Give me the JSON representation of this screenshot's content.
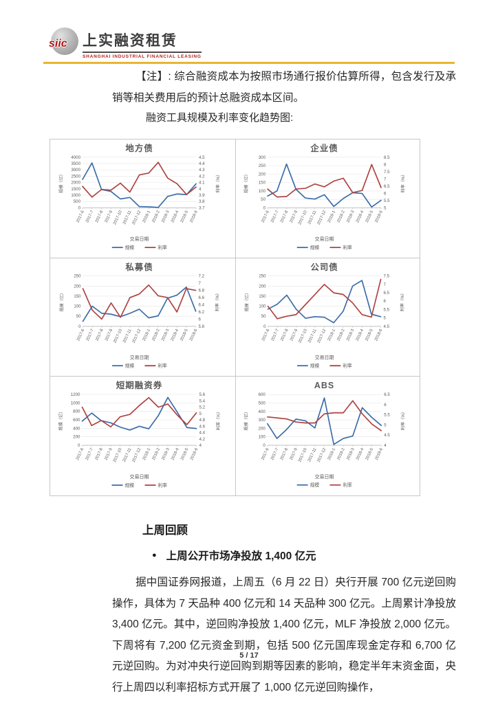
{
  "header": {
    "logo_mark": "siic",
    "company_name_cn": "上实融资租赁",
    "company_name_en": "SHANGHAI INDUSTRIAL FINANCIAL LEASING",
    "brand_gold": "#e9b52f",
    "brand_red": "#b01212"
  },
  "note": {
    "text": "【注】: 综合融资成本为按照市场通行报价估算所得，包含发行及承销等相关费用后的预计总融资成本区间。"
  },
  "charts_section": {
    "caption": "融资工具规模及利率变化趋势图:"
  },
  "chart_style": {
    "series_blue": "#3c6da8",
    "series_red": "#ae4342",
    "grid": "#e4e4e4",
    "baseline": "#c4c4c4",
    "text": "#595959"
  },
  "chart_data": [
    {
      "type": "line",
      "title": "地方债",
      "xlabel": "交易日期",
      "ylabel_left": "规模（亿）",
      "ylabel_right": "利率（%）",
      "x": [
        "2017-6",
        "2017-7",
        "2017-8",
        "2017-9",
        "2017-10",
        "2017-11",
        "2017-12",
        "2018-1",
        "2018-2",
        "2018-3",
        "2018-4",
        "2018-5",
        "2018-6"
      ],
      "left_ticks": [
        "0",
        "500",
        "1000",
        "1500",
        "2000",
        "2500",
        "3000",
        "3500",
        "4000"
      ],
      "right_ticks": [
        "3.7",
        "3.8",
        "3.9",
        "4",
        "4.1",
        "4.2",
        "4.3",
        "4.4",
        "4.5"
      ],
      "left_range": [
        0,
        4000
      ],
      "right_range": [
        3.7,
        4.5
      ],
      "legend": [
        "规模",
        "利率"
      ],
      "series": [
        {
          "name": "规模",
          "axis": "left",
          "values": [
            2250,
            3550,
            1450,
            1300,
            700,
            820,
            100,
            80,
            30,
            900,
            1100,
            1050,
            1900
          ]
        },
        {
          "name": "利率",
          "axis": "right",
          "values": [
            4.04,
            3.87,
            3.99,
            3.98,
            4.09,
            3.95,
            4.22,
            4.25,
            4.42,
            4.17,
            4.08,
            3.91,
            4.03
          ]
        }
      ]
    },
    {
      "type": "line",
      "title": "企业债",
      "xlabel": "交易日期",
      "ylabel_left": "规模（亿）",
      "ylabel_right": "利率（%）",
      "x": [
        "2017-6",
        "2017-7",
        "2017-8",
        "2017-9",
        "2017-10",
        "2017-11",
        "2017-12",
        "2018-1",
        "2018-2",
        "2018-3",
        "2018-4",
        "2018-5",
        "2018-6"
      ],
      "left_ticks": [
        "0",
        "50",
        "100",
        "150",
        "200",
        "250",
        "300"
      ],
      "right_ticks": [
        "5",
        "5.5",
        "6",
        "6.5",
        "7",
        "7.5",
        "8",
        "8.5"
      ],
      "left_range": [
        0,
        300
      ],
      "right_range": [
        5,
        8.5
      ],
      "legend": [
        "规模",
        "利率"
      ],
      "series": [
        {
          "name": "规模",
          "axis": "left",
          "values": [
            70,
            100,
            260,
            110,
            58,
            52,
            78,
            8,
            55,
            90,
            85,
            5,
            45
          ]
        },
        {
          "name": "利率",
          "axis": "right",
          "values": [
            6.3,
            5.75,
            5.78,
            6.3,
            6.35,
            6.65,
            6.45,
            6.85,
            7.05,
            6.05,
            6.2,
            8.0,
            6.4
          ]
        }
      ]
    },
    {
      "type": "line",
      "title": "私募债",
      "xlabel": "交易日期",
      "ylabel_left": "规模（亿）",
      "ylabel_right": "利率（%）",
      "x": [
        "2017-6",
        "2017-7",
        "2017-8",
        "2017-9",
        "2017-10",
        "2017-11",
        "2017-12",
        "2018-1",
        "2018-2",
        "2018-3",
        "2018-4",
        "2018-5",
        "2018-6"
      ],
      "left_ticks": [
        "0",
        "50",
        "100",
        "150",
        "200",
        "250"
      ],
      "right_ticks": [
        "5.8",
        "6",
        "6.2",
        "6.4",
        "6.6",
        "6.8",
        "7",
        "7.2"
      ],
      "left_range": [
        0,
        250
      ],
      "right_range": [
        5.8,
        7.2
      ],
      "legend": [
        "规模",
        "利率"
      ],
      "series": [
        {
          "name": "规模",
          "axis": "left",
          "values": [
            25,
            100,
            65,
            60,
            48,
            65,
            85,
            42,
            52,
            140,
            155,
            195,
            75
          ]
        },
        {
          "name": "利率",
          "axis": "right",
          "values": [
            6.85,
            6.25,
            6.0,
            6.45,
            6.05,
            6.6,
            6.7,
            6.95,
            6.65,
            6.6,
            6.2,
            6.85,
            6.8
          ]
        }
      ]
    },
    {
      "type": "line",
      "title": "公司债",
      "xlabel": "交易日期",
      "ylabel_left": "规模（亿）",
      "ylabel_right": "利率（%）",
      "x": [
        "2017-6",
        "2017-7",
        "2017-8",
        "2017-9",
        "2017-10",
        "2017-11",
        "2017-12",
        "2018-1",
        "2018-2",
        "2018-3",
        "2018-4",
        "2018-5",
        "2018-6"
      ],
      "left_ticks": [
        "0",
        "50",
        "100",
        "150",
        "200",
        "250"
      ],
      "right_ticks": [
        "4.5",
        "5",
        "5.5",
        "6",
        "6.5",
        "7",
        "7.5"
      ],
      "left_range": [
        0,
        250
      ],
      "right_range": [
        4.5,
        7.5
      ],
      "legend": [
        "规模",
        "利率"
      ],
      "series": [
        {
          "name": "规模",
          "axis": "left",
          "values": [
            85,
            110,
            155,
            85,
            40,
            48,
            45,
            18,
            75,
            200,
            228,
            60,
            48
          ]
        },
        {
          "name": "利率",
          "axis": "right",
          "values": [
            5.7,
            4.95,
            5.1,
            5.2,
            5.8,
            6.4,
            7.0,
            6.5,
            6.4,
            5.9,
            5.2,
            5.05,
            7.3
          ]
        }
      ]
    },
    {
      "type": "line",
      "title": "短期融资券",
      "xlabel": "交易日期",
      "ylabel_left": "规模（亿）",
      "ylabel_right": "利率（%）",
      "x": [
        "2017-6",
        "2017-7",
        "2017-8",
        "2017-9",
        "2017-10",
        "2017-11",
        "2017-12",
        "2018-1",
        "2018-2",
        "2018-3",
        "2018-4",
        "2018-5",
        "2018-6"
      ],
      "left_ticks": [
        "0",
        "200",
        "400",
        "600",
        "800",
        "1000",
        "1200"
      ],
      "right_ticks": [
        "4",
        "4.2",
        "4.4",
        "4.6",
        "4.8",
        "5",
        "5.2",
        "5.4",
        "5.6"
      ],
      "left_range": [
        0,
        1200
      ],
      "right_range": [
        4,
        5.6
      ],
      "legend": [
        "规模",
        "利率"
      ],
      "series": [
        {
          "name": "规模",
          "axis": "left",
          "values": [
            570,
            760,
            580,
            530,
            430,
            360,
            450,
            390,
            700,
            1130,
            780,
            420,
            395
          ]
        },
        {
          "name": "利率",
          "axis": "right",
          "values": [
            5.2,
            4.62,
            4.78,
            4.58,
            4.9,
            4.97,
            5.25,
            5.5,
            5.2,
            5.3,
            4.95,
            4.65,
            5.02
          ]
        }
      ]
    },
    {
      "type": "line",
      "title": "ABS",
      "xlabel": "交易日期",
      "ylabel_left": "规模（亿）",
      "ylabel_right": "利率（%）",
      "x": [
        "2017-6",
        "2017-7",
        "2017-8",
        "2017-9",
        "2017-10",
        "2017-11",
        "2017-12",
        "2018-1",
        "2018-2",
        "2018-3",
        "2018-4",
        "2018-5",
        "2018-6"
      ],
      "left_ticks": [
        "0",
        "100",
        "200",
        "300",
        "400",
        "500",
        "600"
      ],
      "right_ticks": [
        "4",
        "4.5",
        "5",
        "5.5",
        "6",
        "6.5"
      ],
      "left_range": [
        0,
        600
      ],
      "right_range": [
        4,
        6.5
      ],
      "legend": [
        "规模",
        "利率"
      ],
      "series": [
        {
          "name": "规模",
          "axis": "left",
          "values": [
            255,
            80,
            185,
            310,
            290,
            205,
            560,
            10,
            80,
            110,
            445,
            330,
            235
          ]
        },
        {
          "name": "利率",
          "axis": "right",
          "values": [
            5.4,
            5.35,
            5.3,
            5.15,
            5.1,
            5.1,
            5.55,
            5.6,
            5.6,
            6.2,
            5.55,
            5.05,
            4.72
          ]
        }
      ]
    }
  ],
  "review": {
    "heading": "上周回顾",
    "bullet_glyph": "●",
    "bullet": "上周公开市场净投放 1,400 亿元",
    "paragraph": "据中国证券网报道，上周五（6 月 22 日）央行开展 700 亿元逆回购操作，具体为 7 天品种 400 亿元和 14 天品种 300 亿元。上周累计净投放 3,400 亿元。其中，逆回购净投放 1,400 亿元，MLF 净投放 2,000 亿元。下周将有 7,200 亿元资金到期，包括 500 亿元国库现金定存和 6,700 亿元逆回购。为对冲央行逆回购到期等因素的影响，稳定半年末资金面，央行上周四以利率招标方式开展了 1,000 亿元逆回购操作，"
  },
  "footer": {
    "page_number": "5 / 17"
  }
}
